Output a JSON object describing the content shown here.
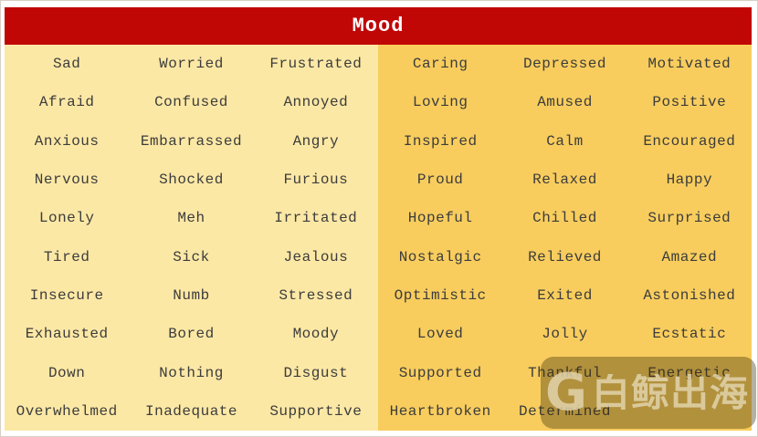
{
  "header": {
    "title": "Mood",
    "background_color": "#c10606",
    "text_color": "#ffffff"
  },
  "table": {
    "left_half_background": "#fce8a5",
    "right_half_background": "#f8cd5e",
    "text_color": "#3c3c3c",
    "columns": 6,
    "rows": [
      [
        "Sad",
        "Worried",
        "Frustrated",
        "Caring",
        "Depressed",
        "Motivated"
      ],
      [
        "Afraid",
        "Confused",
        "Annoyed",
        "Loving",
        "Amused",
        "Positive"
      ],
      [
        "Anxious",
        "Embarrassed",
        "Angry",
        "Inspired",
        "Calm",
        "Encouraged"
      ],
      [
        "Nervous",
        "Shocked",
        "Furious",
        "Proud",
        "Relaxed",
        "Happy"
      ],
      [
        "Lonely",
        "Meh",
        "Irritated",
        "Hopeful",
        "Chilled",
        "Surprised"
      ],
      [
        "Tired",
        "Sick",
        "Jealous",
        "Nostalgic",
        "Relieved",
        "Amazed"
      ],
      [
        "Insecure",
        "Numb",
        "Stressed",
        "Optimistic",
        "Exited",
        "Astonished"
      ],
      [
        "Exhausted",
        "Bored",
        "Moody",
        "Loved",
        "Jolly",
        "Ecstatic"
      ],
      [
        "Down",
        "Nothing",
        "Disgust",
        "Supported",
        "Thankful",
        "Energetic"
      ],
      [
        "Overwhelmed",
        "Inadequate",
        "Supportive",
        "Heartbroken",
        "Determined",
        ""
      ]
    ]
  },
  "watermark": {
    "logo_letter": "G",
    "text": "白鲸出海",
    "box_color": "rgba(62,48,8,0.38)",
    "glyph_color": "#e0d2aa"
  }
}
